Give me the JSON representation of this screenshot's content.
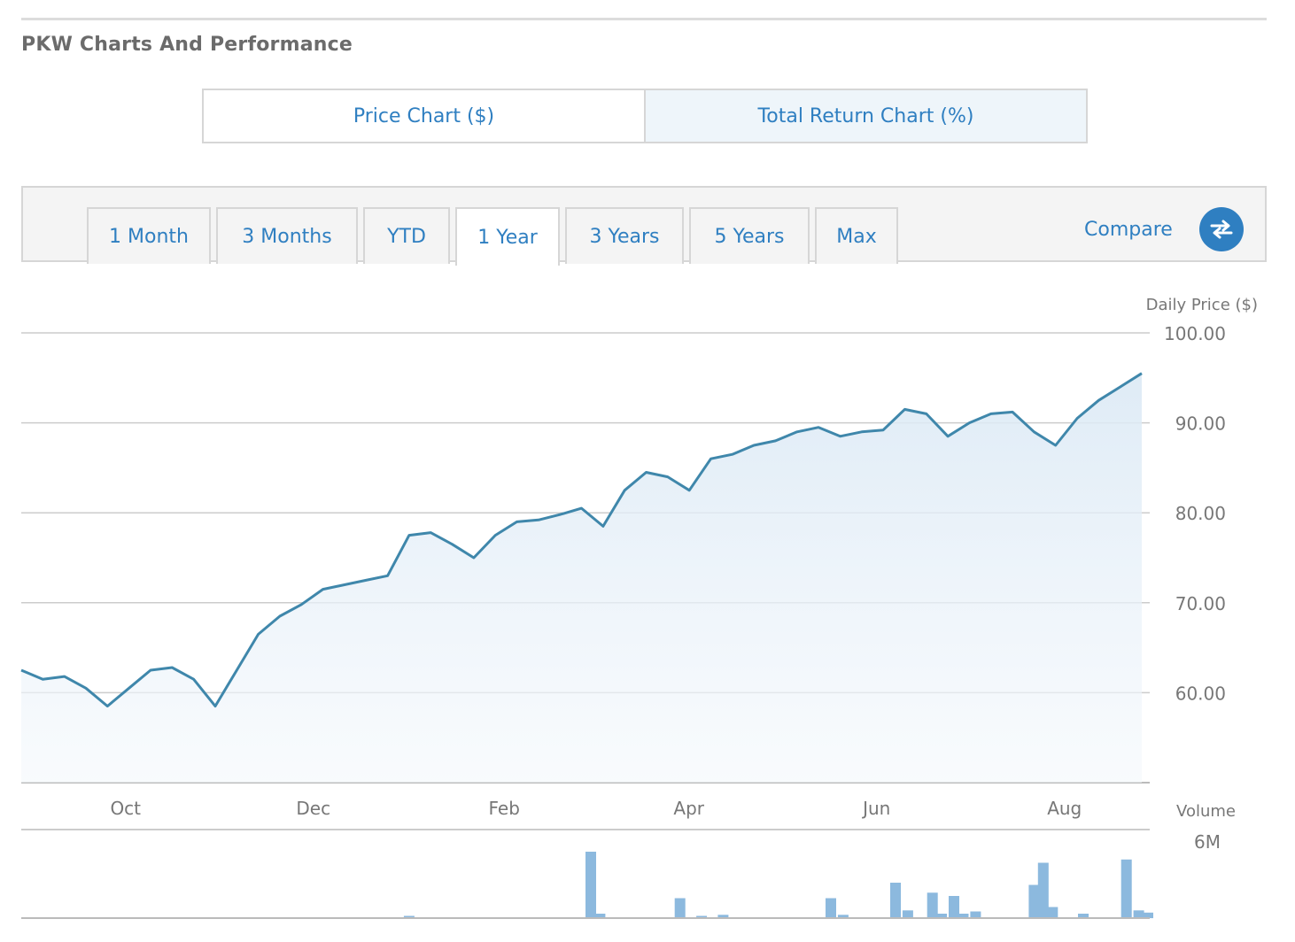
{
  "section": {
    "title": "PKW Charts And Performance"
  },
  "chart_toggle": {
    "price_label": "Price Chart ($)",
    "total_return_label": "Total Return Chart (%)",
    "active": "total_return"
  },
  "range_tabs": [
    {
      "label": "1 Month"
    },
    {
      "label": "3 Months"
    },
    {
      "label": "YTD"
    },
    {
      "label": "1 Year",
      "active": true
    },
    {
      "label": "3 Years"
    },
    {
      "label": "5 Years"
    },
    {
      "label": "Max"
    }
  ],
  "compare": {
    "label": "Compare",
    "icon": "swap-arrows-icon"
  },
  "colors": {
    "accent": "#2f7fc1",
    "line": "#3f87ab",
    "volume": "#8cb9de",
    "grid": "#cccccc"
  },
  "chart_data": {
    "type": "line",
    "ylabel": "Daily Price ($)",
    "ylim": [
      50,
      100
    ],
    "yticks": [
      "100.00",
      "90.00",
      "80.00",
      "70.00",
      "60.00"
    ],
    "xticks": [
      "Oct",
      "Dec",
      "Feb",
      "Apr",
      "Jun",
      "Aug"
    ],
    "series": [
      {
        "x": [
          "2023-08-31",
          "2023-09-07",
          "2023-09-14",
          "2023-09-21",
          "2023-09-28",
          "2023-10-05",
          "2023-10-12",
          "2023-10-19",
          "2023-10-26",
          "2023-11-02",
          "2023-11-09",
          "2023-11-16",
          "2023-11-23",
          "2023-11-30",
          "2023-12-07",
          "2023-12-14",
          "2023-12-21",
          "2023-12-28",
          "2024-01-04",
          "2024-01-11",
          "2024-01-18",
          "2024-01-25",
          "2024-02-01",
          "2024-02-08",
          "2024-02-15",
          "2024-02-22",
          "2024-02-29",
          "2024-03-07",
          "2024-03-14",
          "2024-03-21",
          "2024-03-28",
          "2024-04-04",
          "2024-04-11",
          "2024-04-18",
          "2024-04-25",
          "2024-05-02",
          "2024-05-09",
          "2024-05-16",
          "2024-05-23",
          "2024-05-30",
          "2024-06-06",
          "2024-06-13",
          "2024-06-20",
          "2024-06-27",
          "2024-07-04",
          "2024-07-11",
          "2024-07-18",
          "2024-07-25",
          "2024-08-01",
          "2024-08-08",
          "2024-08-15",
          "2024-08-22",
          "2024-08-29"
        ],
        "values": [
          62.5,
          61.5,
          61.8,
          60.5,
          58.5,
          60.5,
          62.5,
          62.8,
          61.5,
          58.5,
          62.5,
          66.5,
          68.5,
          69.8,
          71.5,
          72.0,
          72.5,
          73.0,
          77.5,
          77.8,
          76.5,
          75.0,
          77.5,
          79.0,
          79.2,
          79.8,
          80.5,
          78.5,
          82.5,
          84.5,
          84.0,
          82.5,
          86.0,
          86.5,
          87.5,
          88.0,
          89.0,
          89.5,
          88.5,
          89.0,
          89.2,
          91.5,
          91.0,
          88.5,
          90.0,
          91.0,
          91.2,
          89.0,
          87.5,
          90.5,
          92.5,
          94.0,
          95.5
        ]
      }
    ],
    "volume_label": "Volume",
    "volume_ytick": "6M",
    "volume": [
      {
        "date": "2024-01-04",
        "value": 0.2
      },
      {
        "date": "2024-03-03",
        "value": 6.0
      },
      {
        "date": "2024-03-06",
        "value": 0.4
      },
      {
        "date": "2024-04-01",
        "value": 1.8
      },
      {
        "date": "2024-04-08",
        "value": 0.2
      },
      {
        "date": "2024-04-15",
        "value": 0.3
      },
      {
        "date": "2024-05-20",
        "value": 1.8
      },
      {
        "date": "2024-05-24",
        "value": 0.3
      },
      {
        "date": "2024-06-10",
        "value": 3.2
      },
      {
        "date": "2024-06-14",
        "value": 0.7
      },
      {
        "date": "2024-06-22",
        "value": 2.3
      },
      {
        "date": "2024-06-25",
        "value": 0.4
      },
      {
        "date": "2024-06-29",
        "value": 2.0
      },
      {
        "date": "2024-07-02",
        "value": 0.4
      },
      {
        "date": "2024-07-06",
        "value": 0.6
      },
      {
        "date": "2024-07-25",
        "value": 3.0
      },
      {
        "date": "2024-07-28",
        "value": 5.0
      },
      {
        "date": "2024-07-31",
        "value": 1.0
      },
      {
        "date": "2024-08-10",
        "value": 0.4
      },
      {
        "date": "2024-08-24",
        "value": 5.3
      },
      {
        "date": "2024-08-28",
        "value": 0.7
      },
      {
        "date": "2024-08-31",
        "value": 0.5
      }
    ]
  }
}
